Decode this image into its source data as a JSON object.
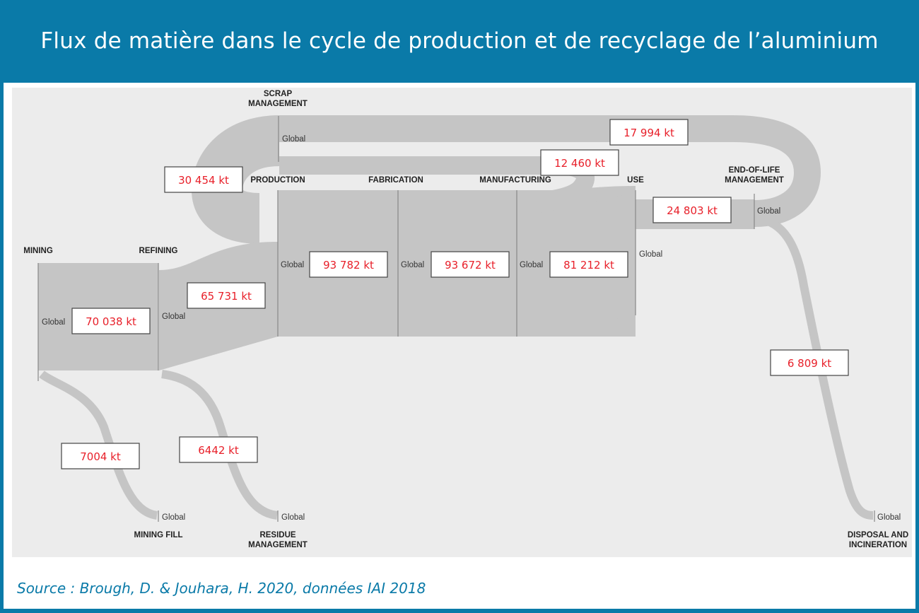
{
  "title": "Flux de matière dans le cycle de production et de recyclage de l’aluminium",
  "nodes": {
    "scrap_line1": "SCRAP",
    "scrap_line2": "MANAGEMENT",
    "production": "PRODUCTION",
    "fabrication": "FABRICATION",
    "manufacturing": "MANUFACTURING",
    "use": "USE",
    "eol_line1": "END-OF-LIFE",
    "eol_line2": "MANAGEMENT",
    "mining": "MINING",
    "refining": "REFINING",
    "mining_fill": "MINING FILL",
    "residue_line1": "RESIDUE",
    "residue_line2": "MANAGEMENT",
    "disposal_line1": "DISPOSAL AND",
    "disposal_line2": "INCINERATION"
  },
  "global_label": "Global",
  "flows": {
    "mining": "70 038 kt",
    "refining": "65 731 kt",
    "production": "93 782 kt",
    "fabrication": "93 672 kt",
    "manufacturing": "81 212 kt",
    "use": "24 803 kt",
    "scrap_to_production": "30 454 kt",
    "new_scrap": "12 460 kt",
    "old_scrap": "17 994 kt",
    "mining_fill": "7004 kt",
    "residue": "6442 kt",
    "disposal": "6 809 kt"
  },
  "source": "Source : Brough, D. & Jouhara, H. 2020, données IAI 2018",
  "colors": {
    "header": "#0a7aa8",
    "flow": "#c5c5c5",
    "value_text": "#e8202a"
  }
}
